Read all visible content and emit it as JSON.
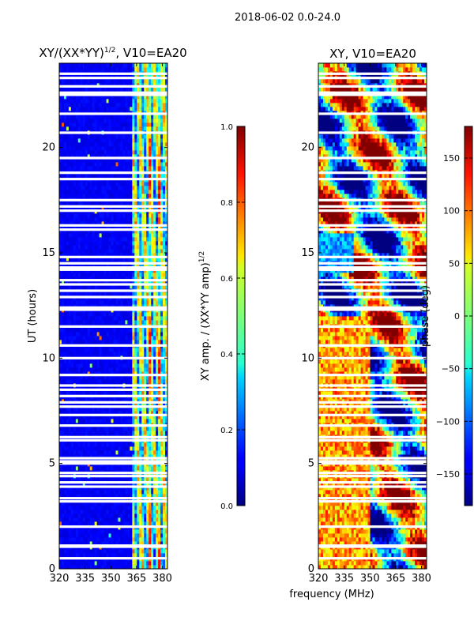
{
  "suptitle": "2018-06-02 0.0-24.0",
  "chart_data": [
    {
      "type": "heatmap",
      "title": "XY/(XX*YY)^1/2, V10=EA20",
      "title_main": "XY/(XX*YY)",
      "title_sup": "1/2",
      "title_tail": ", V10=EA20",
      "xlabel": "",
      "ylabel": "UT (hours)",
      "xlim": [
        320,
        383
      ],
      "ylim": [
        0,
        24
      ],
      "xticks": [
        320,
        335,
        350,
        365,
        380
      ],
      "yticks": [
        0,
        5,
        10,
        15,
        20
      ],
      "colorbar": {
        "label_main": "XY amp. / (XX*YY amp)",
        "label_sup": "1/2",
        "range": [
          0.0,
          1.0
        ],
        "ticks": [
          "0.0",
          "0.2",
          "0.4",
          "0.6",
          "0.8",
          "1.0"
        ],
        "colormap": "jet"
      }
    },
    {
      "type": "heatmap",
      "title": "XY, V10=EA20",
      "xlabel": "frequency (MHz)",
      "ylabel": "",
      "xlim": [
        320,
        383
      ],
      "ylim": [
        0,
        24
      ],
      "xticks": [
        320,
        335,
        350,
        365,
        380
      ],
      "yticks": [
        0,
        5,
        10,
        15,
        20
      ],
      "colorbar": {
        "label": "phase (deg)",
        "range": [
          -180,
          180
        ],
        "ticks": [
          "−150",
          "−100",
          "−50",
          "0",
          "50",
          "100",
          "150"
        ],
        "colormap": "jet"
      }
    }
  ],
  "flagged_time_rows": [
    0.5,
    1.05,
    1.1,
    2.0,
    3.2,
    3.35,
    3.9,
    4.1,
    4.4,
    4.55,
    5.0,
    5.1,
    5.25,
    6.1,
    6.25,
    6.8,
    7.3,
    7.7,
    7.9,
    8.2,
    8.5,
    8.7,
    9.2,
    10.0,
    10.6,
    11.5,
    12.3,
    12.4,
    12.9,
    13.2,
    13.5,
    13.7,
    14.2,
    14.3,
    14.5,
    14.8,
    16.1,
    16.3,
    17.0,
    17.2,
    17.5,
    18.5,
    18.8,
    19.5,
    20.7,
    21.6,
    22.5,
    22.6,
    22.9,
    23.3,
    23.5
  ],
  "rfi_channel_band_mhz": [
    363,
    383
  ],
  "colors": {
    "flag": "#ffffff",
    "axis": "#000000"
  }
}
